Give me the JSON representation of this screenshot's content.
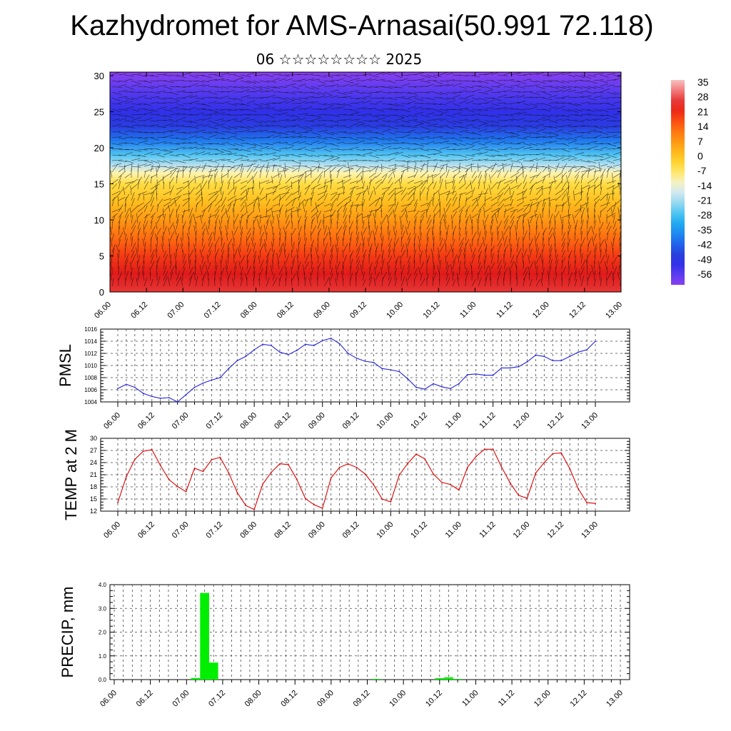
{
  "title": "Kazhydromet for AMS-Arnasai(50.991 72.118)",
  "subtitle": "06 ☆☆☆☆☆☆☆☆ 2025",
  "colors": {
    "pmsl_line": "#2222dd",
    "temp_line": "#dd0000",
    "precip_bar": "#00ee00",
    "grid": "#444444",
    "wind": "#111111"
  },
  "chart_data": [
    {
      "type": "heatmap",
      "name": "Temperature / wind cross-section",
      "x_tick_labels": [
        "06.00",
        "06.12",
        "07.00",
        "07.12",
        "08.00",
        "08.12",
        "09.00",
        "09.12",
        "10.00",
        "10.12",
        "11.00",
        "11.12",
        "12.00",
        "12.12",
        "13.00"
      ],
      "y_tick_labels": [
        "0",
        "5",
        "10",
        "15",
        "20",
        "25",
        "30"
      ],
      "ylim": [
        0,
        30.5
      ],
      "colorbar": {
        "labels": [
          "35",
          "28",
          "21",
          "14",
          "7",
          "0",
          "-7",
          "-14",
          "-21",
          "-28",
          "-35",
          "-42",
          "-49",
          "-56"
        ],
        "range": [
          -60,
          37
        ]
      },
      "temperature_by_level": [
        {
          "level": 0,
          "value": 27
        },
        {
          "level": 2.5,
          "value": 25
        },
        {
          "level": 5,
          "value": 20
        },
        {
          "level": 7.5,
          "value": 14
        },
        {
          "level": 10,
          "value": 8
        },
        {
          "level": 12.5,
          "value": 2
        },
        {
          "level": 15,
          "value": -4
        },
        {
          "level": 16.5,
          "value": -10
        },
        {
          "level": 17.5,
          "value": -18
        },
        {
          "level": 19,
          "value": -26
        },
        {
          "level": 21,
          "value": -38
        },
        {
          "level": 23,
          "value": -47
        },
        {
          "level": 25,
          "value": -50
        },
        {
          "level": 27,
          "value": -53
        },
        {
          "level": 29,
          "value": -57
        },
        {
          "level": 30.5,
          "value": -60
        }
      ],
      "grid": false
    },
    {
      "type": "line",
      "ylabel": "PMSL",
      "x_tick_labels": [
        "06.00",
        "06.12",
        "07.00",
        "07.12",
        "08.00",
        "08.12",
        "09.00",
        "09.12",
        "10.00",
        "10.12",
        "11.00",
        "11.12",
        "12.00",
        "12.12",
        "13.00"
      ],
      "y_tick_labels": [
        "1004",
        "1006",
        "1008",
        "1010",
        "1012",
        "1014",
        "1016"
      ],
      "ylim": [
        1004,
        1016
      ],
      "grid": true,
      "series": [
        {
          "values": [
            1006.2,
            1006.9,
            1006.4,
            1005.4,
            1004.9,
            1004.6,
            1004.7,
            1004.0,
            1005.2,
            1006.4,
            1007.1,
            1007.6,
            1008.0,
            1009.5,
            1010.8,
            1011.5,
            1012.6,
            1013.5,
            1013.3,
            1012.2,
            1011.8,
            1012.5,
            1013.5,
            1013.3,
            1014.1,
            1014.5,
            1013.6,
            1012.0,
            1011.2,
            1010.7,
            1010.5,
            1009.5,
            1009.3,
            1009.0,
            1007.8,
            1006.4,
            1006.1,
            1007.0,
            1006.5,
            1006.2,
            1007.0,
            1008.5,
            1008.6,
            1008.4,
            1008.4,
            1009.6,
            1009.6,
            1009.8,
            1010.6,
            1011.7,
            1011.5,
            1010.8,
            1010.8,
            1011.5,
            1012.2,
            1012.6,
            1014.0
          ]
        }
      ]
    },
    {
      "type": "line",
      "ylabel": "TEMP at 2 M",
      "x_tick_labels": [
        "06.00",
        "06.12",
        "07.00",
        "07.12",
        "08.00",
        "08.12",
        "09.00",
        "09.12",
        "10.00",
        "10.12",
        "11.00",
        "11.12",
        "12.00",
        "12.12",
        "13.00"
      ],
      "y_tick_labels": [
        "12",
        "15",
        "18",
        "21",
        "24",
        "27",
        "30"
      ],
      "ylim": [
        12,
        30
      ],
      "grid": true,
      "series": [
        {
          "values": [
            14.1,
            20.5,
            24.8,
            26.8,
            27.2,
            23.3,
            19.8,
            18.1,
            16.8,
            22.6,
            21.8,
            24.7,
            25.3,
            21.5,
            16.6,
            13.4,
            12.4,
            18.7,
            21.6,
            23.7,
            23.5,
            19.8,
            15.1,
            13.6,
            12.7,
            20.2,
            22.8,
            23.7,
            22.8,
            21.2,
            18.5,
            15.0,
            14.3,
            20.9,
            23.8,
            26.1,
            24.9,
            21.2,
            19.1,
            18.6,
            17.2,
            22.8,
            25.5,
            27.3,
            27.3,
            22.9,
            19.0,
            15.9,
            15.2,
            21.4,
            24.0,
            26.2,
            26.4,
            22.5,
            17.5,
            14.1,
            13.9
          ]
        }
      ]
    },
    {
      "type": "bar",
      "ylabel": "PRECIP, mm",
      "x_tick_labels": [
        "06.00",
        "06.12",
        "07.00",
        "07.12",
        "08.00",
        "08.12",
        "09.00",
        "09.12",
        "10.00",
        "10.12",
        "11.00",
        "11.12",
        "12.00",
        "12.12",
        "13.00"
      ],
      "y_tick_labels": [
        "0.0",
        "1.0",
        "2.0",
        "3.0",
        "4.0"
      ],
      "ylim": [
        0,
        4.0
      ],
      "grid": true,
      "series": [
        {
          "values": [
            0,
            0,
            0,
            0,
            0,
            0,
            0,
            0,
            0,
            0.07,
            3.65,
            0.72,
            0,
            0,
            0,
            0,
            0,
            0,
            0,
            0,
            0,
            0,
            0,
            0,
            0,
            0,
            0,
            0,
            0,
            0.03,
            0,
            0,
            0,
            0,
            0,
            0,
            0.06,
            0.1,
            0.03,
            0,
            0,
            0,
            0,
            0,
            0,
            0,
            0,
            0,
            0,
            0,
            0,
            0,
            0,
            0,
            0,
            0,
            0
          ]
        }
      ]
    }
  ]
}
